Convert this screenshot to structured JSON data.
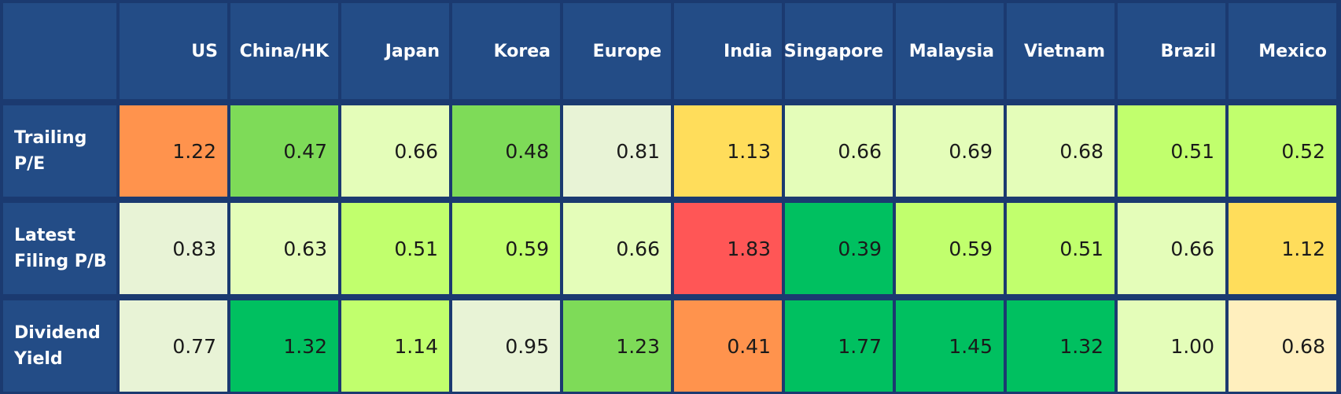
{
  "chart_data": {
    "type": "heatmap",
    "columns": [
      "US",
      "China/HK",
      "Japan",
      "Korea",
      "Europe",
      "India",
      "Singapore",
      "Malaysia",
      "Vietnam",
      "Brazil",
      "Mexico"
    ],
    "rows": [
      {
        "label": "Trailing P/E",
        "values": [
          "1.22",
          "0.47",
          "0.66",
          "0.48",
          "0.81",
          "1.13",
          "0.66",
          "0.69",
          "0.68",
          "0.51",
          "0.52"
        ],
        "colors": [
          "#ff934d",
          "#7edb58",
          "#e4fdb9",
          "#7edb58",
          "#e8f3d6",
          "#ffdd5b",
          "#e4fdb9",
          "#e4fdb9",
          "#e4fdb9",
          "#c1ff6d",
          "#c1ff6d"
        ]
      },
      {
        "label": "Latest Filing P/B",
        "values": [
          "0.83",
          "0.63",
          "0.51",
          "0.59",
          "0.66",
          "1.83",
          "0.39",
          "0.59",
          "0.51",
          "0.66",
          "1.12"
        ],
        "colors": [
          "#e8f3d6",
          "#e4fdb9",
          "#c1ff6d",
          "#c1ff6d",
          "#e4fdb9",
          "#ff5656",
          "#00c060",
          "#c1ff6d",
          "#c1ff6d",
          "#e4fdb9",
          "#ffdd5b"
        ]
      },
      {
        "label": "Dividend Yield",
        "values": [
          "0.77",
          "1.32",
          "1.14",
          "0.95",
          "1.23",
          "0.41",
          "1.77",
          "1.45",
          "1.32",
          "1.00",
          "0.68"
        ],
        "colors": [
          "#e8f3d6",
          "#00c060",
          "#c1ff6d",
          "#e8f3d6",
          "#7edb58",
          "#ff934d",
          "#00c060",
          "#00c060",
          "#00c060",
          "#e4fdb9",
          "#ffefbe"
        ]
      }
    ]
  }
}
